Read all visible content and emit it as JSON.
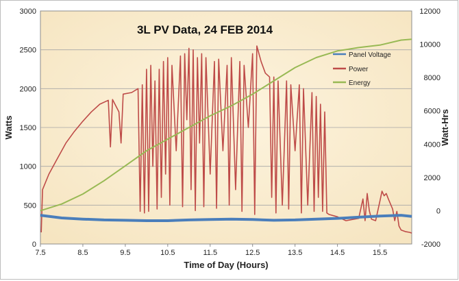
{
  "chart_data": {
    "type": "line",
    "title": "3L PV Data, 24 FEB 2014",
    "xlabel": "Time of Day (Hours)",
    "ylabel": "Watts",
    "y2label": "Watt-Hrs",
    "xlim": [
      7.5,
      16.25
    ],
    "ylim": [
      0,
      3000
    ],
    "y2lim": [
      -2000,
      12000
    ],
    "x_ticks": [
      "7.5",
      "8.5",
      "9.5",
      "10.5",
      "11.5",
      "12.5",
      "13.5",
      "14.5",
      "15.5"
    ],
    "y_ticks": [
      "0",
      "500",
      "1000",
      "1500",
      "2000",
      "2500",
      "3000"
    ],
    "y2_ticks": [
      "-2000",
      "0",
      "2000",
      "4000",
      "6000",
      "8000",
      "10000",
      "12000"
    ],
    "grid": "horizontal",
    "legend_position": "right",
    "series": [
      {
        "name": "Panel Voltage",
        "axis": "left",
        "color": "#4a7ebb",
        "points": [
          [
            7.5,
            370
          ],
          [
            8.0,
            335
          ],
          [
            8.5,
            320
          ],
          [
            9.0,
            310
          ],
          [
            9.5,
            305
          ],
          [
            10.0,
            300
          ],
          [
            10.5,
            300
          ],
          [
            11.0,
            310
          ],
          [
            11.5,
            315
          ],
          [
            12.0,
            320
          ],
          [
            12.5,
            315
          ],
          [
            13.0,
            305
          ],
          [
            13.5,
            310
          ],
          [
            14.0,
            320
          ],
          [
            14.5,
            330
          ],
          [
            15.0,
            345
          ],
          [
            15.5,
            360
          ],
          [
            16.0,
            370
          ],
          [
            16.25,
            355
          ]
        ]
      },
      {
        "name": "Power",
        "axis": "left",
        "color": "#be4b48",
        "points": [
          [
            7.52,
            150
          ],
          [
            7.55,
            700
          ],
          [
            7.7,
            900
          ],
          [
            7.9,
            1100
          ],
          [
            8.1,
            1300
          ],
          [
            8.3,
            1450
          ],
          [
            8.5,
            1580
          ],
          [
            8.7,
            1700
          ],
          [
            8.9,
            1800
          ],
          [
            9.1,
            1850
          ],
          [
            9.15,
            1250
          ],
          [
            9.2,
            1860
          ],
          [
            9.35,
            1700
          ],
          [
            9.4,
            1300
          ],
          [
            9.45,
            1930
          ],
          [
            9.65,
            1950
          ],
          [
            9.8,
            2000
          ],
          [
            9.85,
            420
          ],
          [
            9.9,
            2050
          ],
          [
            9.95,
            400
          ],
          [
            10.0,
            2250
          ],
          [
            10.05,
            420
          ],
          [
            10.1,
            2300
          ],
          [
            10.15,
            1000
          ],
          [
            10.2,
            2100
          ],
          [
            10.25,
            450
          ],
          [
            10.3,
            2250
          ],
          [
            10.35,
            600
          ],
          [
            10.4,
            2350
          ],
          [
            10.45,
            900
          ],
          [
            10.5,
            2400
          ],
          [
            10.55,
            500
          ],
          [
            10.6,
            2300
          ],
          [
            10.7,
            1200
          ],
          [
            10.8,
            2420
          ],
          [
            10.85,
            480
          ],
          [
            10.9,
            2450
          ],
          [
            10.95,
            1600
          ],
          [
            11.0,
            2520
          ],
          [
            11.05,
            700
          ],
          [
            11.1,
            2500
          ],
          [
            11.15,
            430
          ],
          [
            11.2,
            2400
          ],
          [
            11.25,
            1300
          ],
          [
            11.3,
            2450
          ],
          [
            11.35,
            480
          ],
          [
            11.4,
            2400
          ],
          [
            11.5,
            900
          ],
          [
            11.6,
            2350
          ],
          [
            11.65,
            460
          ],
          [
            11.7,
            2380
          ],
          [
            11.8,
            1200
          ],
          [
            11.9,
            2300
          ],
          [
            11.95,
            500
          ],
          [
            12.0,
            2400
          ],
          [
            12.1,
            700
          ],
          [
            12.2,
            2350
          ],
          [
            12.25,
            420
          ],
          [
            12.3,
            2300
          ],
          [
            12.4,
            1500
          ],
          [
            12.5,
            2450
          ],
          [
            12.55,
            380
          ],
          [
            12.6,
            2550
          ],
          [
            12.7,
            2350
          ],
          [
            12.8,
            2200
          ],
          [
            12.9,
            2150
          ],
          [
            12.95,
            600
          ],
          [
            13.0,
            2150
          ],
          [
            13.05,
            400
          ],
          [
            13.1,
            2100
          ],
          [
            13.2,
            500
          ],
          [
            13.3,
            2100
          ],
          [
            13.35,
            450
          ],
          [
            13.4,
            2050
          ],
          [
            13.5,
            1200
          ],
          [
            13.6,
            2050
          ],
          [
            13.65,
            400
          ],
          [
            13.7,
            2000
          ],
          [
            13.8,
            500
          ],
          [
            13.9,
            1950
          ],
          [
            13.95,
            420
          ],
          [
            14.0,
            1900
          ],
          [
            14.05,
            600
          ],
          [
            14.1,
            1800
          ],
          [
            14.15,
            420
          ],
          [
            14.2,
            1700
          ],
          [
            14.25,
            400
          ],
          [
            14.3,
            380
          ],
          [
            14.5,
            350
          ],
          [
            14.7,
            300
          ],
          [
            14.9,
            320
          ],
          [
            15.0,
            330
          ],
          [
            15.1,
            580
          ],
          [
            15.15,
            300
          ],
          [
            15.2,
            650
          ],
          [
            15.25,
            430
          ],
          [
            15.3,
            320
          ],
          [
            15.4,
            300
          ],
          [
            15.5,
            550
          ],
          [
            15.55,
            680
          ],
          [
            15.6,
            620
          ],
          [
            15.65,
            650
          ],
          [
            15.7,
            580
          ],
          [
            15.8,
            450
          ],
          [
            15.85,
            300
          ],
          [
            15.9,
            420
          ],
          [
            15.95,
            230
          ],
          [
            16.0,
            180
          ],
          [
            16.1,
            160
          ],
          [
            16.2,
            150
          ],
          [
            16.25,
            140
          ]
        ]
      },
      {
        "name": "Energy",
        "axis": "right",
        "color": "#98b954",
        "points": [
          [
            7.5,
            0
          ],
          [
            8.0,
            400
          ],
          [
            8.5,
            1000
          ],
          [
            9.0,
            1800
          ],
          [
            9.5,
            2700
          ],
          [
            10.0,
            3600
          ],
          [
            10.5,
            4300
          ],
          [
            11.0,
            5000
          ],
          [
            11.5,
            5700
          ],
          [
            12.0,
            6300
          ],
          [
            12.5,
            7000
          ],
          [
            13.0,
            7800
          ],
          [
            13.5,
            8600
          ],
          [
            14.0,
            9200
          ],
          [
            14.5,
            9600
          ],
          [
            15.0,
            9800
          ],
          [
            15.5,
            9950
          ],
          [
            16.0,
            10250
          ],
          [
            16.25,
            10300
          ]
        ]
      }
    ]
  }
}
